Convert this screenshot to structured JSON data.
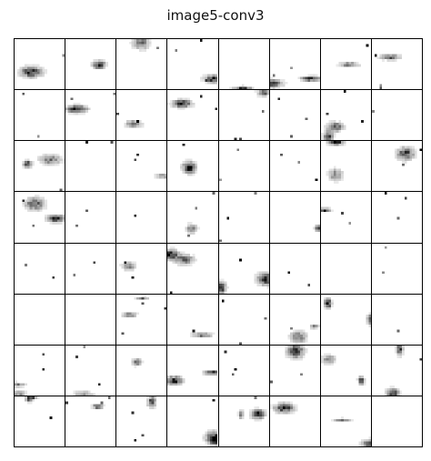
{
  "figure": {
    "title": "image5-conv3",
    "grid": {
      "rows": 8,
      "cols": 8
    },
    "colormap": [
      "#ffffff",
      "#000000"
    ]
  }
}
